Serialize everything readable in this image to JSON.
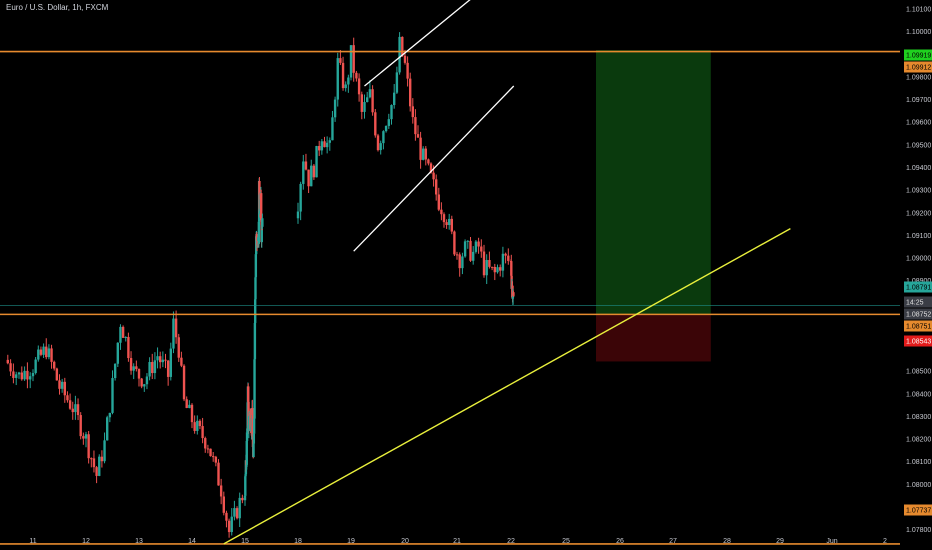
{
  "chart_data": {
    "type": "candlestick",
    "title": "Euro / U.S. Dollar, 1h, FXCM",
    "ylim": [
      1.0771,
      1.1014
    ],
    "y_ticks": [
      "1.10100",
      "1.10000",
      "1.09800",
      "1.09700",
      "1.09600",
      "1.09500",
      "1.09400",
      "1.09300",
      "1.09200",
      "1.09100",
      "1.09000",
      "1.08900",
      "1.08500",
      "1.08400",
      "1.08300",
      "1.08200",
      "1.08100",
      "1.08000",
      "1.07900",
      "1.07800"
    ],
    "x_ticks": [
      "11",
      "12",
      "13",
      "14",
      "15",
      "18",
      "19",
      "20",
      "21",
      "22",
      "25",
      "26",
      "27",
      "28",
      "29",
      "Jun",
      "2"
    ],
    "colors": {
      "up": "#26a69a",
      "down": "#ef5350",
      "level": "#e68a2e",
      "channel": "#ffffff",
      "trendline": "#e8ef3c",
      "profit_zone": "#0a3a0d",
      "loss_zone": "#3b0507",
      "current_line": "#1e8c87"
    },
    "horizontal_levels": [
      1.09912,
      1.08751,
      1.07737
    ],
    "price_labels": [
      {
        "text": "1.09919",
        "bg": "#1fd01f",
        "fg": "#000000"
      },
      {
        "text": "1.09912",
        "bg": "#e68a2e",
        "fg": "#000000"
      },
      {
        "text": "1.08791",
        "bg": "#26a69a",
        "fg": "#000000"
      },
      {
        "text": "14:25",
        "bg": "#3a3d45",
        "fg": "#e0e0e0"
      },
      {
        "text": "1.08752",
        "bg": "#3a3d45",
        "fg": "#e0e0e0"
      },
      {
        "text": "1.08751",
        "bg": "#e68a2e",
        "fg": "#000000"
      },
      {
        "text": "1.08543",
        "bg": "#e31b1b",
        "fg": "#ffffff"
      },
      {
        "text": "1.07737",
        "bg": "#e68a2e",
        "fg": "#000000"
      }
    ],
    "position": {
      "entry": 1.08751,
      "target": 1.09919,
      "stop": 1.08543,
      "start": "25",
      "end": "27.7"
    },
    "trendline": {
      "from": [
        "14.6",
        1.07737
      ],
      "to": [
        "29.2",
        1.0913
      ]
    },
    "channel": [
      {
        "from": [
          "19.25",
          1.0976
        ],
        "to": [
          "21.9",
          1.1027
        ]
      },
      {
        "from": [
          "19.05",
          1.0903
        ],
        "to": [
          "22.45",
          1.0976
        ]
      }
    ],
    "close_path": [
      [
        10.5,
        1.0855
      ],
      [
        10.75,
        1.0848
      ],
      [
        11.0,
        1.0852
      ],
      [
        11.25,
        1.086
      ],
      [
        11.5,
        1.0843
      ],
      [
        11.75,
        1.0834
      ],
      [
        12.0,
        1.082
      ],
      [
        12.2,
        1.0804
      ],
      [
        12.35,
        1.0818
      ],
      [
        12.5,
        1.0844
      ],
      [
        12.65,
        1.0872
      ],
      [
        12.75,
        1.0864
      ],
      [
        12.9,
        1.085
      ],
      [
        13.1,
        1.0846
      ],
      [
        13.35,
        1.0857
      ],
      [
        13.55,
        1.0848
      ],
      [
        13.65,
        1.0871
      ],
      [
        13.75,
        1.086
      ],
      [
        13.85,
        1.0836
      ],
      [
        14.05,
        1.0826
      ],
      [
        14.3,
        1.0818
      ],
      [
        14.55,
        1.0798
      ],
      [
        14.7,
        1.0779
      ],
      [
        14.9,
        1.0792
      ],
      [
        15.05,
        1.0801
      ],
      [
        15.25,
        1.0812
      ],
      [
        15.35,
        1.0822
      ],
      [
        15.5,
        1.084
      ],
      [
        15.6,
        1.0826
      ],
      [
        15.8,
        1.0832
      ],
      [
        16.05,
        1.0827
      ],
      [
        16.25,
        1.083
      ],
      [
        16.4,
        1.0808
      ],
      [
        16.55,
        1.0833
      ],
      [
        16.62,
        1.0855
      ],
      [
        16.68,
        1.0875
      ],
      [
        16.78,
        1.0895
      ],
      [
        16.9,
        1.091
      ],
      [
        17.1,
        1.0906
      ],
      [
        17.3,
        1.0904
      ],
      [
        17.4,
        1.0932
      ],
      [
        17.55,
        1.092
      ],
      [
        17.7,
        1.0925
      ],
      [
        17.8,
        1.091
      ],
      [
        18.0,
        1.0925
      ],
      [
        18.1,
        1.0945
      ],
      [
        18.2,
        1.0935
      ],
      [
        18.3,
        1.094
      ],
      [
        18.45,
        1.0955
      ],
      [
        18.6,
        1.0948
      ],
      [
        18.75,
        1.0986
      ],
      [
        18.9,
        1.0974
      ],
      [
        19.0,
        1.099
      ],
      [
        19.2,
        1.0964
      ],
      [
        19.35,
        1.0972
      ],
      [
        19.5,
        1.095
      ],
      [
        19.7,
        1.0965
      ],
      [
        19.8,
        1.097
      ],
      [
        19.9,
        1.0994
      ],
      [
        20.0,
        1.0985
      ],
      [
        20.15,
        1.096
      ],
      [
        20.3,
        1.0947
      ],
      [
        20.5,
        1.0935
      ],
      [
        20.65,
        1.0925
      ],
      [
        20.8,
        1.0918
      ],
      [
        20.95,
        1.0905
      ],
      [
        21.05,
        1.09
      ],
      [
        21.15,
        1.0904
      ],
      [
        21.3,
        1.0902
      ],
      [
        21.4,
        1.0905
      ],
      [
        21.5,
        1.0896
      ],
      [
        21.7,
        1.0893
      ],
      [
        21.85,
        1.09
      ],
      [
        22.0,
        1.0898
      ],
      [
        22.1,
        1.089
      ],
      [
        22.25,
        1.0885
      ],
      [
        22.4,
        1.0879
      ]
    ]
  }
}
